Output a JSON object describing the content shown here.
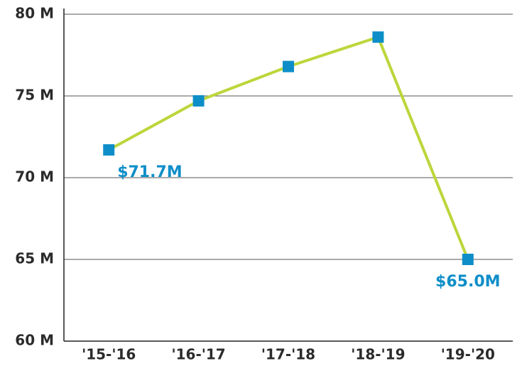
{
  "chart_data": {
    "type": "line",
    "categories": [
      "'15-'16",
      "'16-'17",
      "'17-'18",
      "'18-'19",
      "'19-'20"
    ],
    "series": [
      {
        "color": "#bcd63a",
        "marker_color": "#0e8ec8",
        "values": [
          71.7,
          74.7,
          76.8,
          78.6,
          65.0
        ],
        "value_labels": [
          "$71.7M",
          null,
          null,
          null,
          "$65.0M"
        ]
      }
    ],
    "ylim": [
      60,
      80
    ],
    "yticks": [
      {
        "value": 60,
        "label": "60 M"
      },
      {
        "value": 65,
        "label": "65 M"
      },
      {
        "value": 70,
        "label": "70 M"
      },
      {
        "value": 75,
        "label": "75 M"
      },
      {
        "value": 80,
        "label": "80 M"
      }
    ],
    "grid": true
  }
}
